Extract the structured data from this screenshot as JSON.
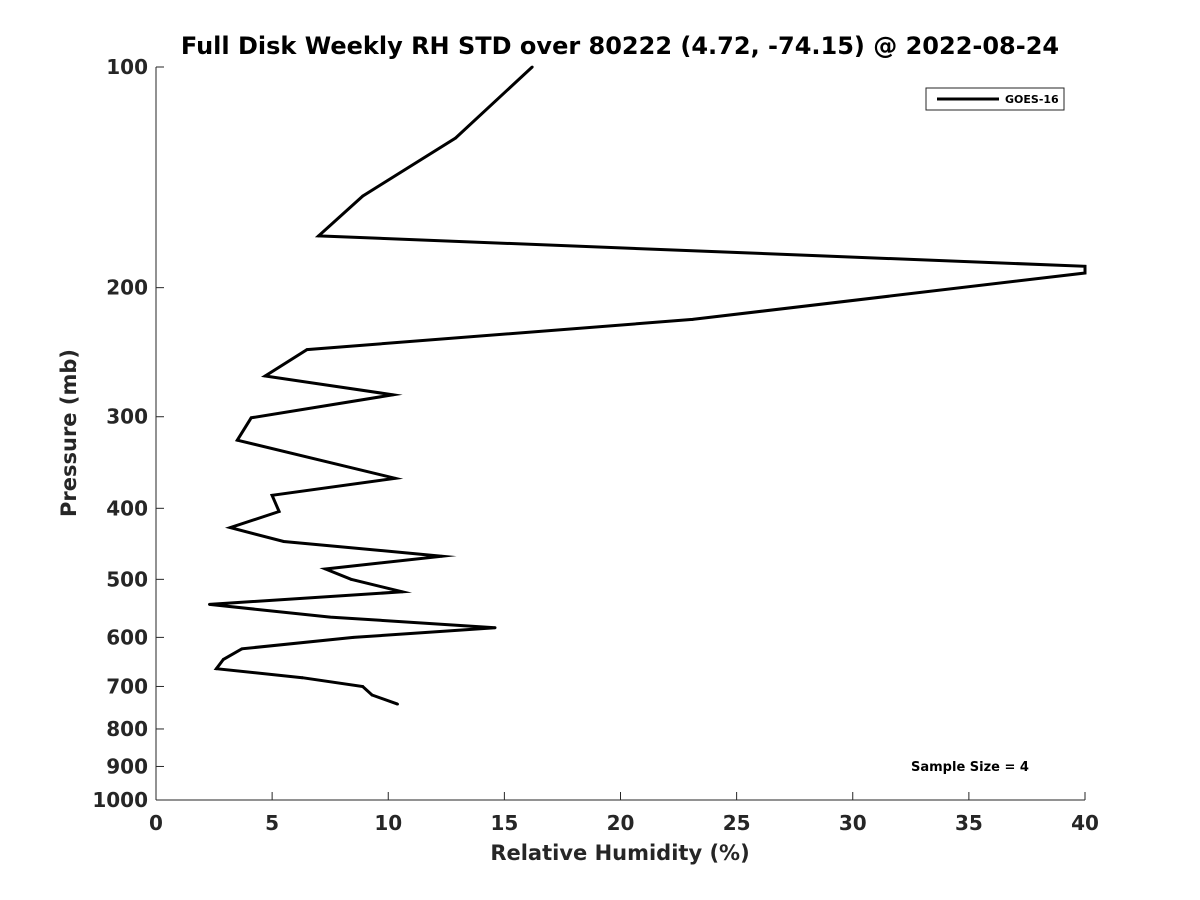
{
  "chart_data": {
    "type": "line",
    "title": "Full Disk Weekly RH STD over 80222 (4.72, -74.15) @ 2022-08-24",
    "xlabel": "Relative Humidity (%)",
    "ylabel": "Pressure (mb)",
    "xlim": [
      0,
      40
    ],
    "ylim": [
      100,
      1000
    ],
    "y_scale": "log",
    "y_reversed": true,
    "x_ticks": [
      0,
      5,
      10,
      15,
      20,
      25,
      30,
      35,
      40
    ],
    "y_ticks": [
      100,
      200,
      300,
      400,
      500,
      600,
      700,
      800,
      900,
      1000
    ],
    "grid": false,
    "legend": {
      "entries": [
        "GOES-16"
      ],
      "location": "top-right"
    },
    "annotation": "Sample Size = 4",
    "series": [
      {
        "name": "GOES-16",
        "color": "#000000",
        "points": [
          {
            "x": 16.2,
            "p": 100
          },
          {
            "x": 12.9,
            "p": 125
          },
          {
            "x": 8.9,
            "p": 150
          },
          {
            "x": 7.0,
            "p": 170
          },
          {
            "x": 40.0,
            "p": 187
          },
          {
            "x": 40.0,
            "p": 191
          },
          {
            "x": 23.1,
            "p": 221
          },
          {
            "x": 6.5,
            "p": 243
          },
          {
            "x": 4.7,
            "p": 264
          },
          {
            "x": 10.2,
            "p": 280
          },
          {
            "x": 4.1,
            "p": 301
          },
          {
            "x": 3.5,
            "p": 323
          },
          {
            "x": 10.3,
            "p": 364
          },
          {
            "x": 5.0,
            "p": 384
          },
          {
            "x": 5.3,
            "p": 404
          },
          {
            "x": 3.2,
            "p": 425
          },
          {
            "x": 5.5,
            "p": 444
          },
          {
            "x": 12.3,
            "p": 465
          },
          {
            "x": 7.3,
            "p": 484
          },
          {
            "x": 8.4,
            "p": 500
          },
          {
            "x": 10.6,
            "p": 520
          },
          {
            "x": 2.3,
            "p": 541
          },
          {
            "x": 7.5,
            "p": 563
          },
          {
            "x": 14.6,
            "p": 582
          },
          {
            "x": 8.5,
            "p": 600
          },
          {
            "x": 3.7,
            "p": 622
          },
          {
            "x": 2.9,
            "p": 643
          },
          {
            "x": 2.6,
            "p": 662
          },
          {
            "x": 6.3,
            "p": 681
          },
          {
            "x": 8.9,
            "p": 700
          },
          {
            "x": 9.3,
            "p": 719
          },
          {
            "x": 10.4,
            "p": 740
          }
        ]
      }
    ]
  }
}
